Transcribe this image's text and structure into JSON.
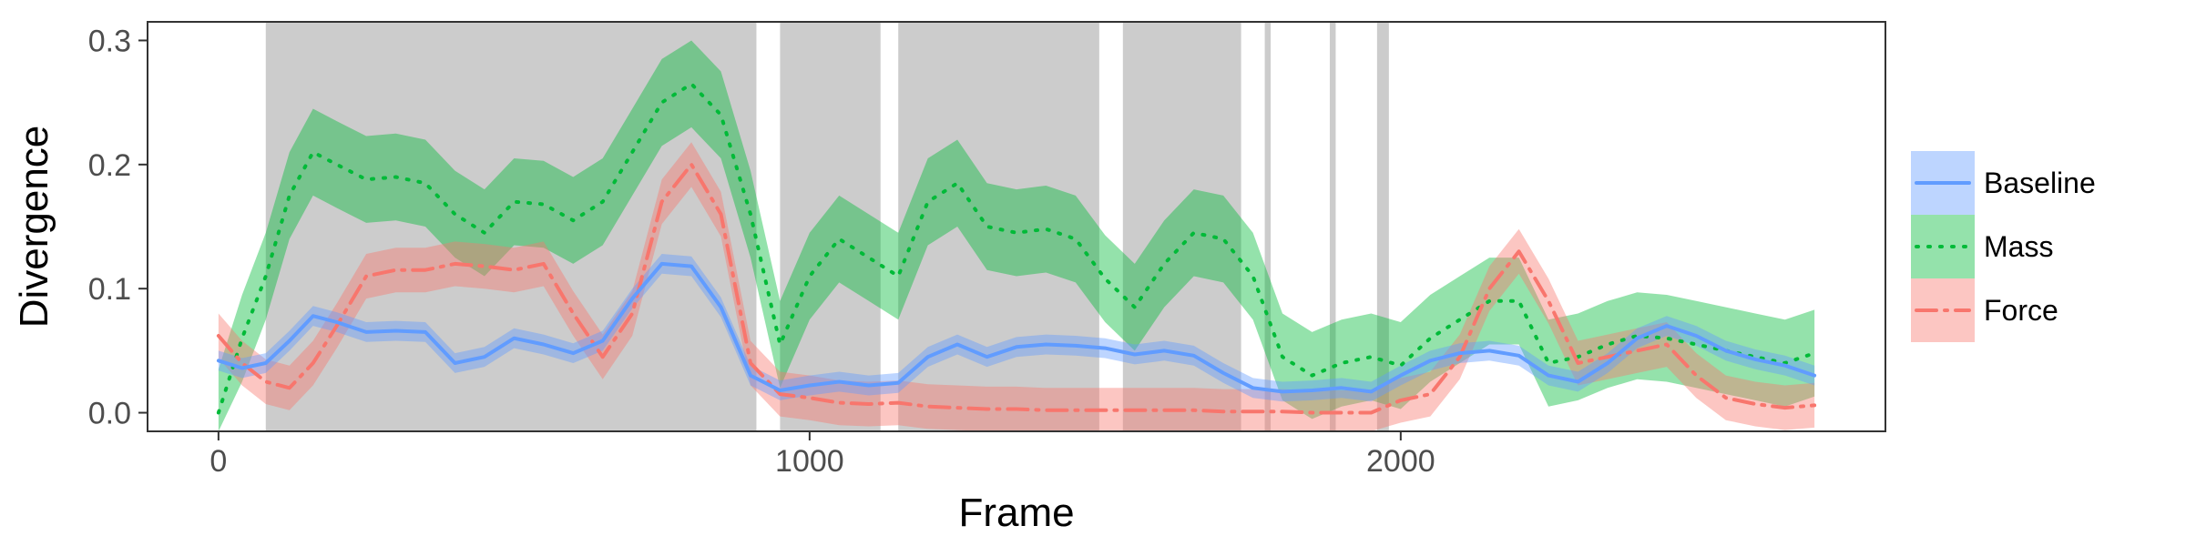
{
  "chart_data": {
    "type": "line",
    "title": "",
    "xlabel": "Frame",
    "ylabel": "Divergence",
    "xlim": [
      -120,
      2820
    ],
    "ylim": [
      -0.015,
      0.315
    ],
    "x_ticks": [
      0,
      1000,
      2000
    ],
    "x_tick_labels": [
      "0",
      "1000",
      "2000"
    ],
    "y_ticks": [
      0.0,
      0.1,
      0.2,
      0.3
    ],
    "y_tick_labels": [
      "0.0",
      "0.1",
      "0.2",
      "0.3"
    ],
    "grid": false,
    "legend_position": "right",
    "shaded_regions": [
      [
        80,
        910
      ],
      [
        950,
        1120
      ],
      [
        1150,
        1490
      ],
      [
        1530,
        1730
      ],
      [
        1770,
        1780
      ],
      [
        1880,
        1890
      ],
      [
        1960,
        1980
      ]
    ],
    "x": [
      0,
      40,
      80,
      120,
      160,
      200,
      250,
      300,
      350,
      400,
      450,
      500,
      550,
      600,
      650,
      700,
      750,
      800,
      850,
      900,
      950,
      1000,
      1050,
      1100,
      1150,
      1200,
      1250,
      1300,
      1350,
      1400,
      1450,
      1500,
      1550,
      1600,
      1650,
      1700,
      1750,
      1800,
      1850,
      1900,
      1950,
      2000,
      2050,
      2100,
      2150,
      2200,
      2250,
      2300,
      2350,
      2400,
      2450,
      2500,
      2550,
      2600,
      2650,
      2700
    ],
    "series": [
      {
        "name": "Baseline",
        "color": "#619CFF",
        "dash": "solid",
        "values": [
          0.042,
          0.036,
          0.04,
          0.058,
          0.078,
          0.073,
          0.065,
          0.066,
          0.065,
          0.04,
          0.045,
          0.06,
          0.055,
          0.048,
          0.058,
          0.092,
          0.12,
          0.118,
          0.085,
          0.03,
          0.018,
          0.022,
          0.025,
          0.022,
          0.024,
          0.045,
          0.055,
          0.045,
          0.053,
          0.055,
          0.054,
          0.052,
          0.047,
          0.05,
          0.046,
          0.032,
          0.02,
          0.017,
          0.018,
          0.02,
          0.017,
          0.03,
          0.042,
          0.048,
          0.05,
          0.046,
          0.03,
          0.025,
          0.04,
          0.06,
          0.07,
          0.062,
          0.05,
          0.043,
          0.038,
          0.03
        ],
        "band": 0.008
      },
      {
        "name": "Mass",
        "color": "#00BA38",
        "dash": "dotted",
        "values": [
          0.0,
          0.06,
          0.11,
          0.175,
          0.21,
          0.2,
          0.188,
          0.19,
          0.185,
          0.16,
          0.145,
          0.17,
          0.168,
          0.155,
          0.17,
          0.21,
          0.25,
          0.265,
          0.24,
          0.16,
          0.055,
          0.11,
          0.14,
          0.125,
          0.11,
          0.17,
          0.185,
          0.15,
          0.145,
          0.148,
          0.14,
          0.108,
          0.085,
          0.12,
          0.145,
          0.14,
          0.11,
          0.045,
          0.03,
          0.04,
          0.045,
          0.038,
          0.06,
          0.075,
          0.09,
          0.09,
          0.04,
          0.045,
          0.055,
          0.062,
          0.06,
          0.055,
          0.05,
          0.045,
          0.04,
          0.048
        ],
        "band": 0.035
      },
      {
        "name": "Force",
        "color": "#F8766D",
        "dash": "dashdot",
        "values": [
          0.062,
          0.04,
          0.025,
          0.02,
          0.04,
          0.07,
          0.11,
          0.115,
          0.115,
          0.12,
          0.118,
          0.115,
          0.12,
          0.08,
          0.045,
          0.08,
          0.17,
          0.2,
          0.16,
          0.04,
          0.015,
          0.012,
          0.008,
          0.007,
          0.008,
          0.005,
          0.004,
          0.003,
          0.003,
          0.002,
          0.002,
          0.002,
          0.002,
          0.002,
          0.002,
          0.001,
          0.001,
          0.001,
          0.0,
          0.0,
          0.0,
          0.01,
          0.015,
          0.045,
          0.1,
          0.13,
          0.09,
          0.04,
          0.045,
          0.05,
          0.055,
          0.03,
          0.012,
          0.007,
          0.004,
          0.006
        ],
        "band": 0.018
      }
    ]
  }
}
